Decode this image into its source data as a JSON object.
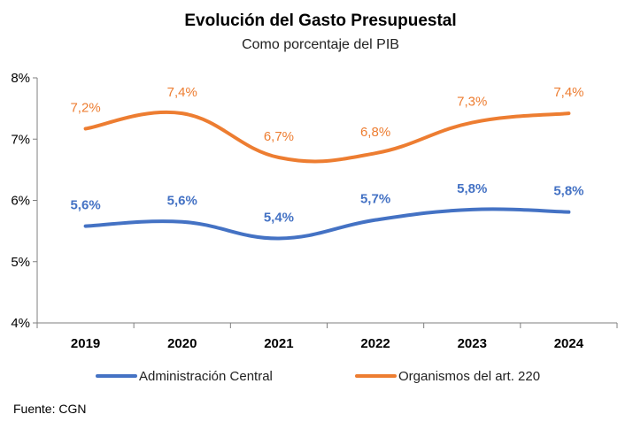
{
  "chart_data": {
    "type": "line",
    "title": "Evolución del Gasto Presupuestal",
    "subtitle": "Como porcentaje del PIB",
    "categories": [
      "2019",
      "2020",
      "2021",
      "2022",
      "2023",
      "2024"
    ],
    "ylim": [
      4,
      8
    ],
    "y_ticks": [
      {
        "value": 4,
        "label": "4%"
      },
      {
        "value": 5,
        "label": "5%"
      },
      {
        "value": 6,
        "label": "6%"
      },
      {
        "value": 7,
        "label": "7%"
      },
      {
        "value": 8,
        "label": "8%"
      }
    ],
    "series": [
      {
        "name": "Administración Central",
        "color": "#4472C4",
        "values": [
          5.58,
          5.65,
          5.38,
          5.68,
          5.85,
          5.81
        ],
        "labels": [
          "5,6%",
          "5,6%",
          "5,4%",
          "5,7%",
          "5,8%",
          "5,8%"
        ],
        "label_bold": true
      },
      {
        "name": "Organismos del art. 220",
        "color": "#ED7D31",
        "values": [
          7.17,
          7.42,
          6.7,
          6.77,
          7.27,
          7.42
        ],
        "labels": [
          "7,2%",
          "7,4%",
          "6,7%",
          "6,8%",
          "7,3%",
          "7,4%"
        ],
        "label_bold": false
      }
    ],
    "legend_position": "bottom",
    "grid": false,
    "source": "Fuente: CGN"
  }
}
